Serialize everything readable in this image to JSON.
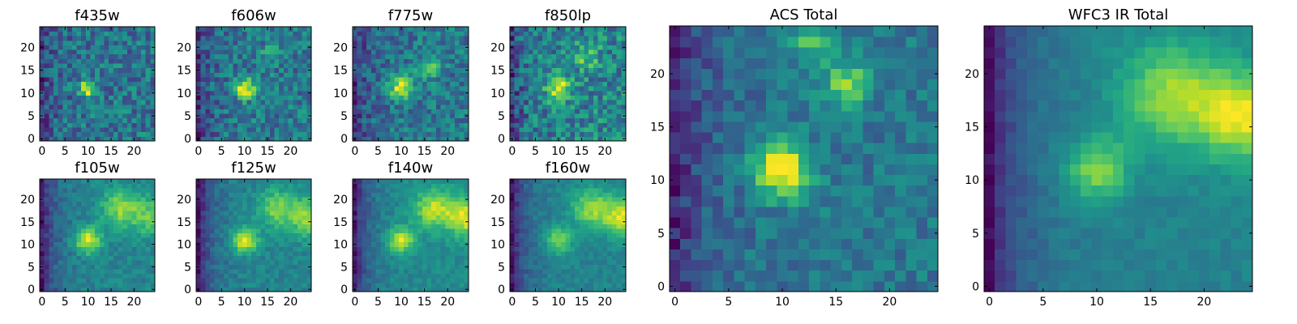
{
  "chart_data": [
    {
      "type": "heatmap",
      "title": "f435w",
      "xticks": [
        0,
        5,
        10,
        15,
        20
      ],
      "yticks": [
        0,
        5,
        10,
        15,
        20
      ],
      "xlim": [
        -0.5,
        24.5
      ],
      "ylim": [
        -0.5,
        24.5
      ],
      "grid": false,
      "colormap": "viridis",
      "features": [
        {
          "x": 10,
          "y": 11,
          "sigma": 1.3,
          "amp": 1.0
        }
      ],
      "background": 0.42,
      "noise": 0.32
    },
    {
      "type": "heatmap",
      "title": "f606w",
      "xticks": [
        0,
        5,
        10,
        15,
        20
      ],
      "yticks": [
        0,
        5,
        10,
        15,
        20
      ],
      "xlim": [
        -0.5,
        24.5
      ],
      "ylim": [
        -0.5,
        24.5
      ],
      "grid": false,
      "colormap": "viridis",
      "features": [
        {
          "x": 10,
          "y": 11,
          "sigma": 1.5,
          "amp": 0.9
        },
        {
          "x": 16,
          "y": 19,
          "sigma": 1.2,
          "amp": 0.45
        }
      ],
      "background": 0.38,
      "noise": 0.26
    },
    {
      "type": "heatmap",
      "title": "f775w",
      "xticks": [
        0,
        5,
        10,
        15,
        20
      ],
      "yticks": [
        0,
        5,
        10,
        15,
        20
      ],
      "xlim": [
        -0.5,
        24.5
      ],
      "ylim": [
        -0.5,
        24.5
      ],
      "grid": false,
      "colormap": "viridis",
      "features": [
        {
          "x": 10,
          "y": 11,
          "sigma": 1.8,
          "amp": 0.75
        },
        {
          "x": 16,
          "y": 16,
          "sigma": 1.8,
          "amp": 0.4
        }
      ],
      "background": 0.45,
      "noise": 0.24
    },
    {
      "type": "heatmap",
      "title": "f850lp",
      "xticks": [
        0,
        5,
        10,
        15,
        20
      ],
      "yticks": [
        0,
        5,
        10,
        15,
        20
      ],
      "xlim": [
        -0.5,
        24.5
      ],
      "ylim": [
        -0.5,
        24.5
      ],
      "grid": false,
      "colormap": "viridis",
      "features": [
        {
          "x": 10,
          "y": 11,
          "sigma": 1.8,
          "amp": 0.7
        },
        {
          "x": 16,
          "y": 18,
          "sigma": 2.0,
          "amp": 0.35
        }
      ],
      "background": 0.5,
      "noise": 0.28
    },
    {
      "type": "heatmap",
      "title": "f105w",
      "xticks": [
        0,
        5,
        10,
        15,
        20
      ],
      "yticks": [
        0,
        5,
        10,
        15,
        20
      ],
      "xlim": [
        -0.5,
        24.5
      ],
      "ylim": [
        -0.5,
        24.5
      ],
      "grid": false,
      "colormap": "viridis",
      "features": [
        {
          "x": 10,
          "y": 11,
          "sigma": 2.0,
          "amp": 0.5
        },
        {
          "x": 17,
          "y": 18,
          "sigma": 3.0,
          "amp": 0.35
        },
        {
          "x": 24,
          "y": 16,
          "sigma": 3.0,
          "amp": 0.3
        }
      ],
      "background": 0.62,
      "noise": 0.08
    },
    {
      "type": "heatmap",
      "title": "f125w",
      "xticks": [
        0,
        5,
        10,
        15,
        20
      ],
      "yticks": [
        0,
        5,
        10,
        15,
        20
      ],
      "xlim": [
        -0.5,
        24.5
      ],
      "ylim": [
        -0.5,
        24.5
      ],
      "grid": false,
      "colormap": "viridis",
      "features": [
        {
          "x": 10,
          "y": 11,
          "sigma": 2.0,
          "amp": 0.45
        },
        {
          "x": 17,
          "y": 18,
          "sigma": 3.0,
          "amp": 0.3
        },
        {
          "x": 24,
          "y": 16,
          "sigma": 3.0,
          "amp": 0.35
        }
      ],
      "background": 0.62,
      "noise": 0.07
    },
    {
      "type": "heatmap",
      "title": "f140w",
      "xticks": [
        0,
        5,
        10,
        15,
        20
      ],
      "yticks": [
        0,
        5,
        10,
        15,
        20
      ],
      "xlim": [
        -0.5,
        24.5
      ],
      "ylim": [
        -0.5,
        24.5
      ],
      "grid": false,
      "colormap": "viridis",
      "features": [
        {
          "x": 10,
          "y": 11,
          "sigma": 2.0,
          "amp": 0.4
        },
        {
          "x": 17,
          "y": 18,
          "sigma": 3.0,
          "amp": 0.35
        },
        {
          "x": 24,
          "y": 16,
          "sigma": 3.0,
          "amp": 0.4
        }
      ],
      "background": 0.62,
      "noise": 0.06
    },
    {
      "type": "heatmap",
      "title": "f160w",
      "xticks": [
        0,
        5,
        10,
        15,
        20
      ],
      "yticks": [
        0,
        5,
        10,
        15,
        20
      ],
      "xlim": [
        -0.5,
        24.5
      ],
      "ylim": [
        -0.5,
        24.5
      ],
      "grid": false,
      "colormap": "viridis",
      "features": [
        {
          "x": 10,
          "y": 11,
          "sigma": 2.0,
          "amp": 0.35
        },
        {
          "x": 17,
          "y": 18,
          "sigma": 3.0,
          "amp": 0.35
        },
        {
          "x": 24,
          "y": 16,
          "sigma": 3.0,
          "amp": 0.45
        }
      ],
      "background": 0.62,
      "noise": 0.06
    },
    {
      "type": "heatmap",
      "title": "ACS Total",
      "xticks": [
        0,
        5,
        10,
        15,
        20
      ],
      "yticks": [
        0,
        5,
        10,
        15,
        20
      ],
      "xlim": [
        -0.5,
        24.5
      ],
      "ylim": [
        -0.5,
        24.5
      ],
      "grid": false,
      "colormap": "viridis",
      "features": [
        {
          "x": 10,
          "y": 11,
          "sigma": 1.8,
          "amp": 0.75
        },
        {
          "x": 16,
          "y": 19,
          "sigma": 1.5,
          "amp": 0.45
        },
        {
          "x": 13,
          "y": 23,
          "sigma": 1.5,
          "amp": 0.35
        }
      ],
      "background": 0.45,
      "noise": 0.13
    },
    {
      "type": "heatmap",
      "title": "WFC3 IR Total",
      "xticks": [
        0,
        5,
        10,
        15,
        20
      ],
      "yticks": [
        0,
        5,
        10,
        15,
        20
      ],
      "xlim": [
        -0.5,
        24.5
      ],
      "ylim": [
        -0.5,
        24.5
      ],
      "grid": false,
      "colormap": "viridis",
      "features": [
        {
          "x": 10,
          "y": 11,
          "sigma": 2.0,
          "amp": 0.35
        },
        {
          "x": 17,
          "y": 18,
          "sigma": 3.5,
          "amp": 0.35
        },
        {
          "x": 24,
          "y": 16,
          "sigma": 3.0,
          "amp": 0.45
        }
      ],
      "background": 0.6,
      "noise": 0.04
    }
  ]
}
